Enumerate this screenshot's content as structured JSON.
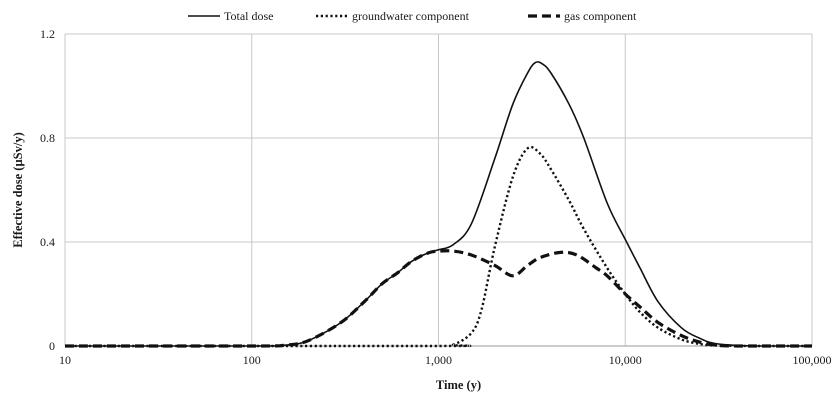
{
  "chart_data": {
    "type": "line",
    "title": "",
    "xlabel": "Time (y)",
    "ylabel": "Effective dose (µSv/y)",
    "x_scale": "log",
    "xlim": [
      10,
      100000
    ],
    "ylim": [
      0,
      1.2
    ],
    "x_ticks": [
      10,
      100,
      1000,
      10000,
      100000
    ],
    "x_tick_labels": [
      "10",
      "100",
      "1,000",
      "10,000",
      "100,000"
    ],
    "y_ticks": [
      0,
      0.4,
      0.8,
      1.2
    ],
    "y_tick_labels": [
      "0",
      "0.4",
      "0.8",
      "1.2"
    ],
    "grid": true,
    "legend_position": "top",
    "series": [
      {
        "name": "Total dose",
        "line_style": "solid",
        "color": "#111111",
        "points": [
          [
            10,
            0
          ],
          [
            100,
            0
          ],
          [
            150,
            0.003
          ],
          [
            200,
            0.02
          ],
          [
            300,
            0.09
          ],
          [
            400,
            0.17
          ],
          [
            500,
            0.24
          ],
          [
            600,
            0.28
          ],
          [
            700,
            0.32
          ],
          [
            800,
            0.345
          ],
          [
            900,
            0.36
          ],
          [
            1000,
            0.37
          ],
          [
            1200,
            0.39
          ],
          [
            1500,
            0.47
          ],
          [
            2000,
            0.72
          ],
          [
            2500,
            0.93
          ],
          [
            3000,
            1.05
          ],
          [
            3300,
            1.09
          ],
          [
            3600,
            1.085
          ],
          [
            4000,
            1.05
          ],
          [
            5000,
            0.93
          ],
          [
            6000,
            0.8
          ],
          [
            8000,
            0.55
          ],
          [
            10000,
            0.41
          ],
          [
            12000,
            0.3
          ],
          [
            15000,
            0.17
          ],
          [
            20000,
            0.07
          ],
          [
            25000,
            0.03
          ],
          [
            30000,
            0.01
          ],
          [
            40000,
            0.002
          ],
          [
            50000,
            0
          ],
          [
            100000,
            0
          ]
        ]
      },
      {
        "name": "groundwater component",
        "line_style": "dotted",
        "color": "#111111",
        "points": [
          [
            10,
            0
          ],
          [
            1000,
            0
          ],
          [
            1200,
            0.005
          ],
          [
            1500,
            0.05
          ],
          [
            1700,
            0.14
          ],
          [
            2000,
            0.38
          ],
          [
            2500,
            0.65
          ],
          [
            3000,
            0.76
          ],
          [
            3500,
            0.74
          ],
          [
            4000,
            0.68
          ],
          [
            5000,
            0.56
          ],
          [
            6000,
            0.45
          ],
          [
            8000,
            0.3
          ],
          [
            10000,
            0.2
          ],
          [
            12000,
            0.13
          ],
          [
            15000,
            0.07
          ],
          [
            20000,
            0.025
          ],
          [
            25000,
            0.008
          ],
          [
            30000,
            0.002
          ],
          [
            50000,
            0
          ],
          [
            100000,
            0
          ]
        ]
      },
      {
        "name": "gas component",
        "line_style": "dashed",
        "color": "#111111",
        "points": [
          [
            10,
            0
          ],
          [
            100,
            0
          ],
          [
            150,
            0.003
          ],
          [
            200,
            0.02
          ],
          [
            300,
            0.09
          ],
          [
            400,
            0.17
          ],
          [
            500,
            0.24
          ],
          [
            600,
            0.28
          ],
          [
            700,
            0.32
          ],
          [
            800,
            0.345
          ],
          [
            900,
            0.36
          ],
          [
            1000,
            0.365
          ],
          [
            1200,
            0.365
          ],
          [
            1500,
            0.35
          ],
          [
            2000,
            0.31
          ],
          [
            2500,
            0.27
          ],
          [
            3000,
            0.31
          ],
          [
            3500,
            0.34
          ],
          [
            4500,
            0.36
          ],
          [
            5500,
            0.35
          ],
          [
            7000,
            0.3
          ],
          [
            8000,
            0.27
          ],
          [
            10000,
            0.2
          ],
          [
            12000,
            0.15
          ],
          [
            15000,
            0.09
          ],
          [
            20000,
            0.04
          ],
          [
            25000,
            0.015
          ],
          [
            30000,
            0.004
          ],
          [
            40000,
            0
          ],
          [
            100000,
            0
          ]
        ]
      }
    ]
  }
}
